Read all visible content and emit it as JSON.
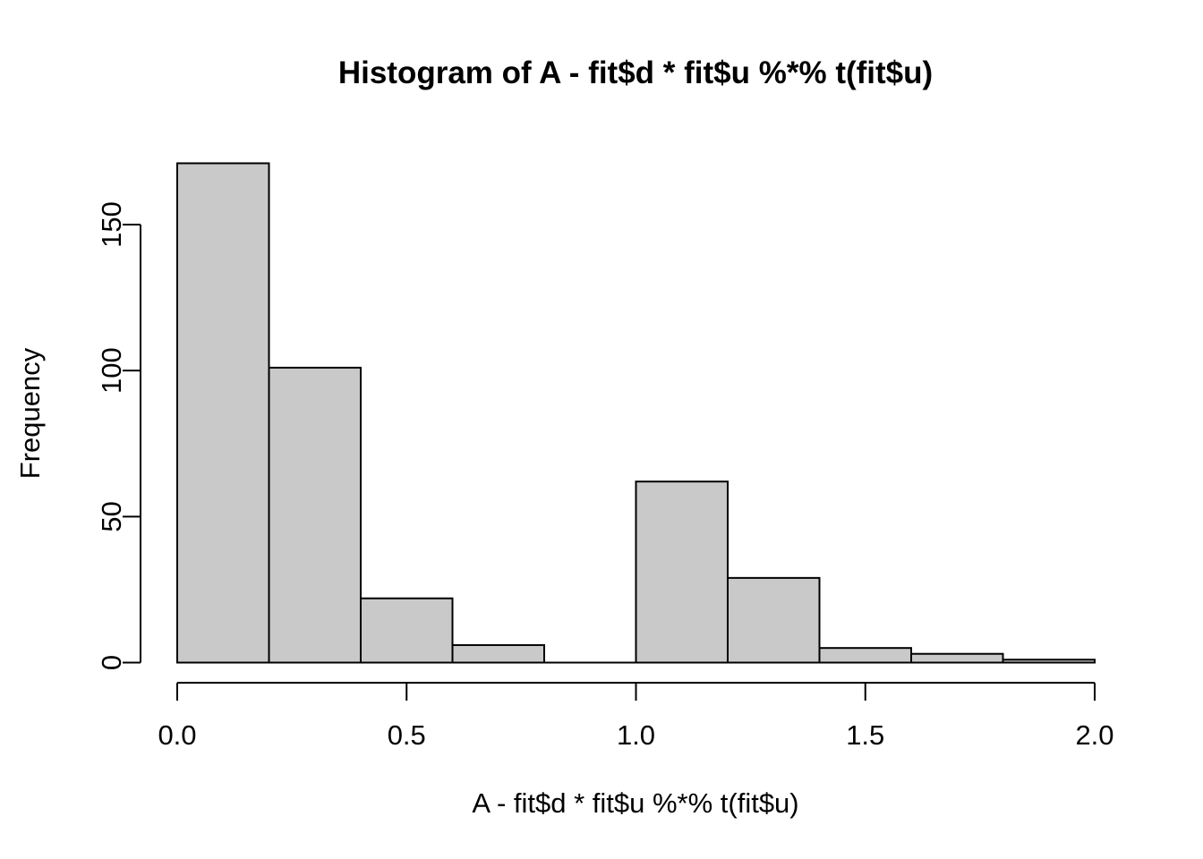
{
  "chart_data": {
    "type": "bar",
    "subtype": "histogram",
    "title": "Histogram of A - fit$d * fit$u %*% t(fit$u)",
    "xlabel": "A - fit$d * fit$u %*% t(fit$u)",
    "ylabel": "Frequency",
    "bin_start": 0.0,
    "bin_width": 0.2,
    "bin_edges": [
      0.0,
      0.2,
      0.4,
      0.6,
      0.8,
      1.0,
      1.2,
      1.4,
      1.6,
      1.8,
      2.0
    ],
    "counts": [
      171,
      101,
      22,
      6,
      0,
      62,
      29,
      5,
      3,
      1
    ],
    "xlim": [
      0.0,
      2.0
    ],
    "ylim": [
      0,
      150
    ],
    "x_ticks": [
      0.0,
      0.5,
      1.0,
      1.5,
      2.0
    ],
    "x_tick_labels": [
      "0.0",
      "0.5",
      "1.0",
      "1.5",
      "2.0"
    ],
    "y_ticks": [
      0,
      50,
      100,
      150
    ],
    "y_tick_labels": [
      "0",
      "50",
      "100",
      "150"
    ],
    "legend": null,
    "grid": false,
    "colors": {
      "bar_fill": "#C9C9C9",
      "bar_stroke": "#000000",
      "axis": "#000000",
      "text": "#000000",
      "background": "#FFFFFF"
    }
  }
}
